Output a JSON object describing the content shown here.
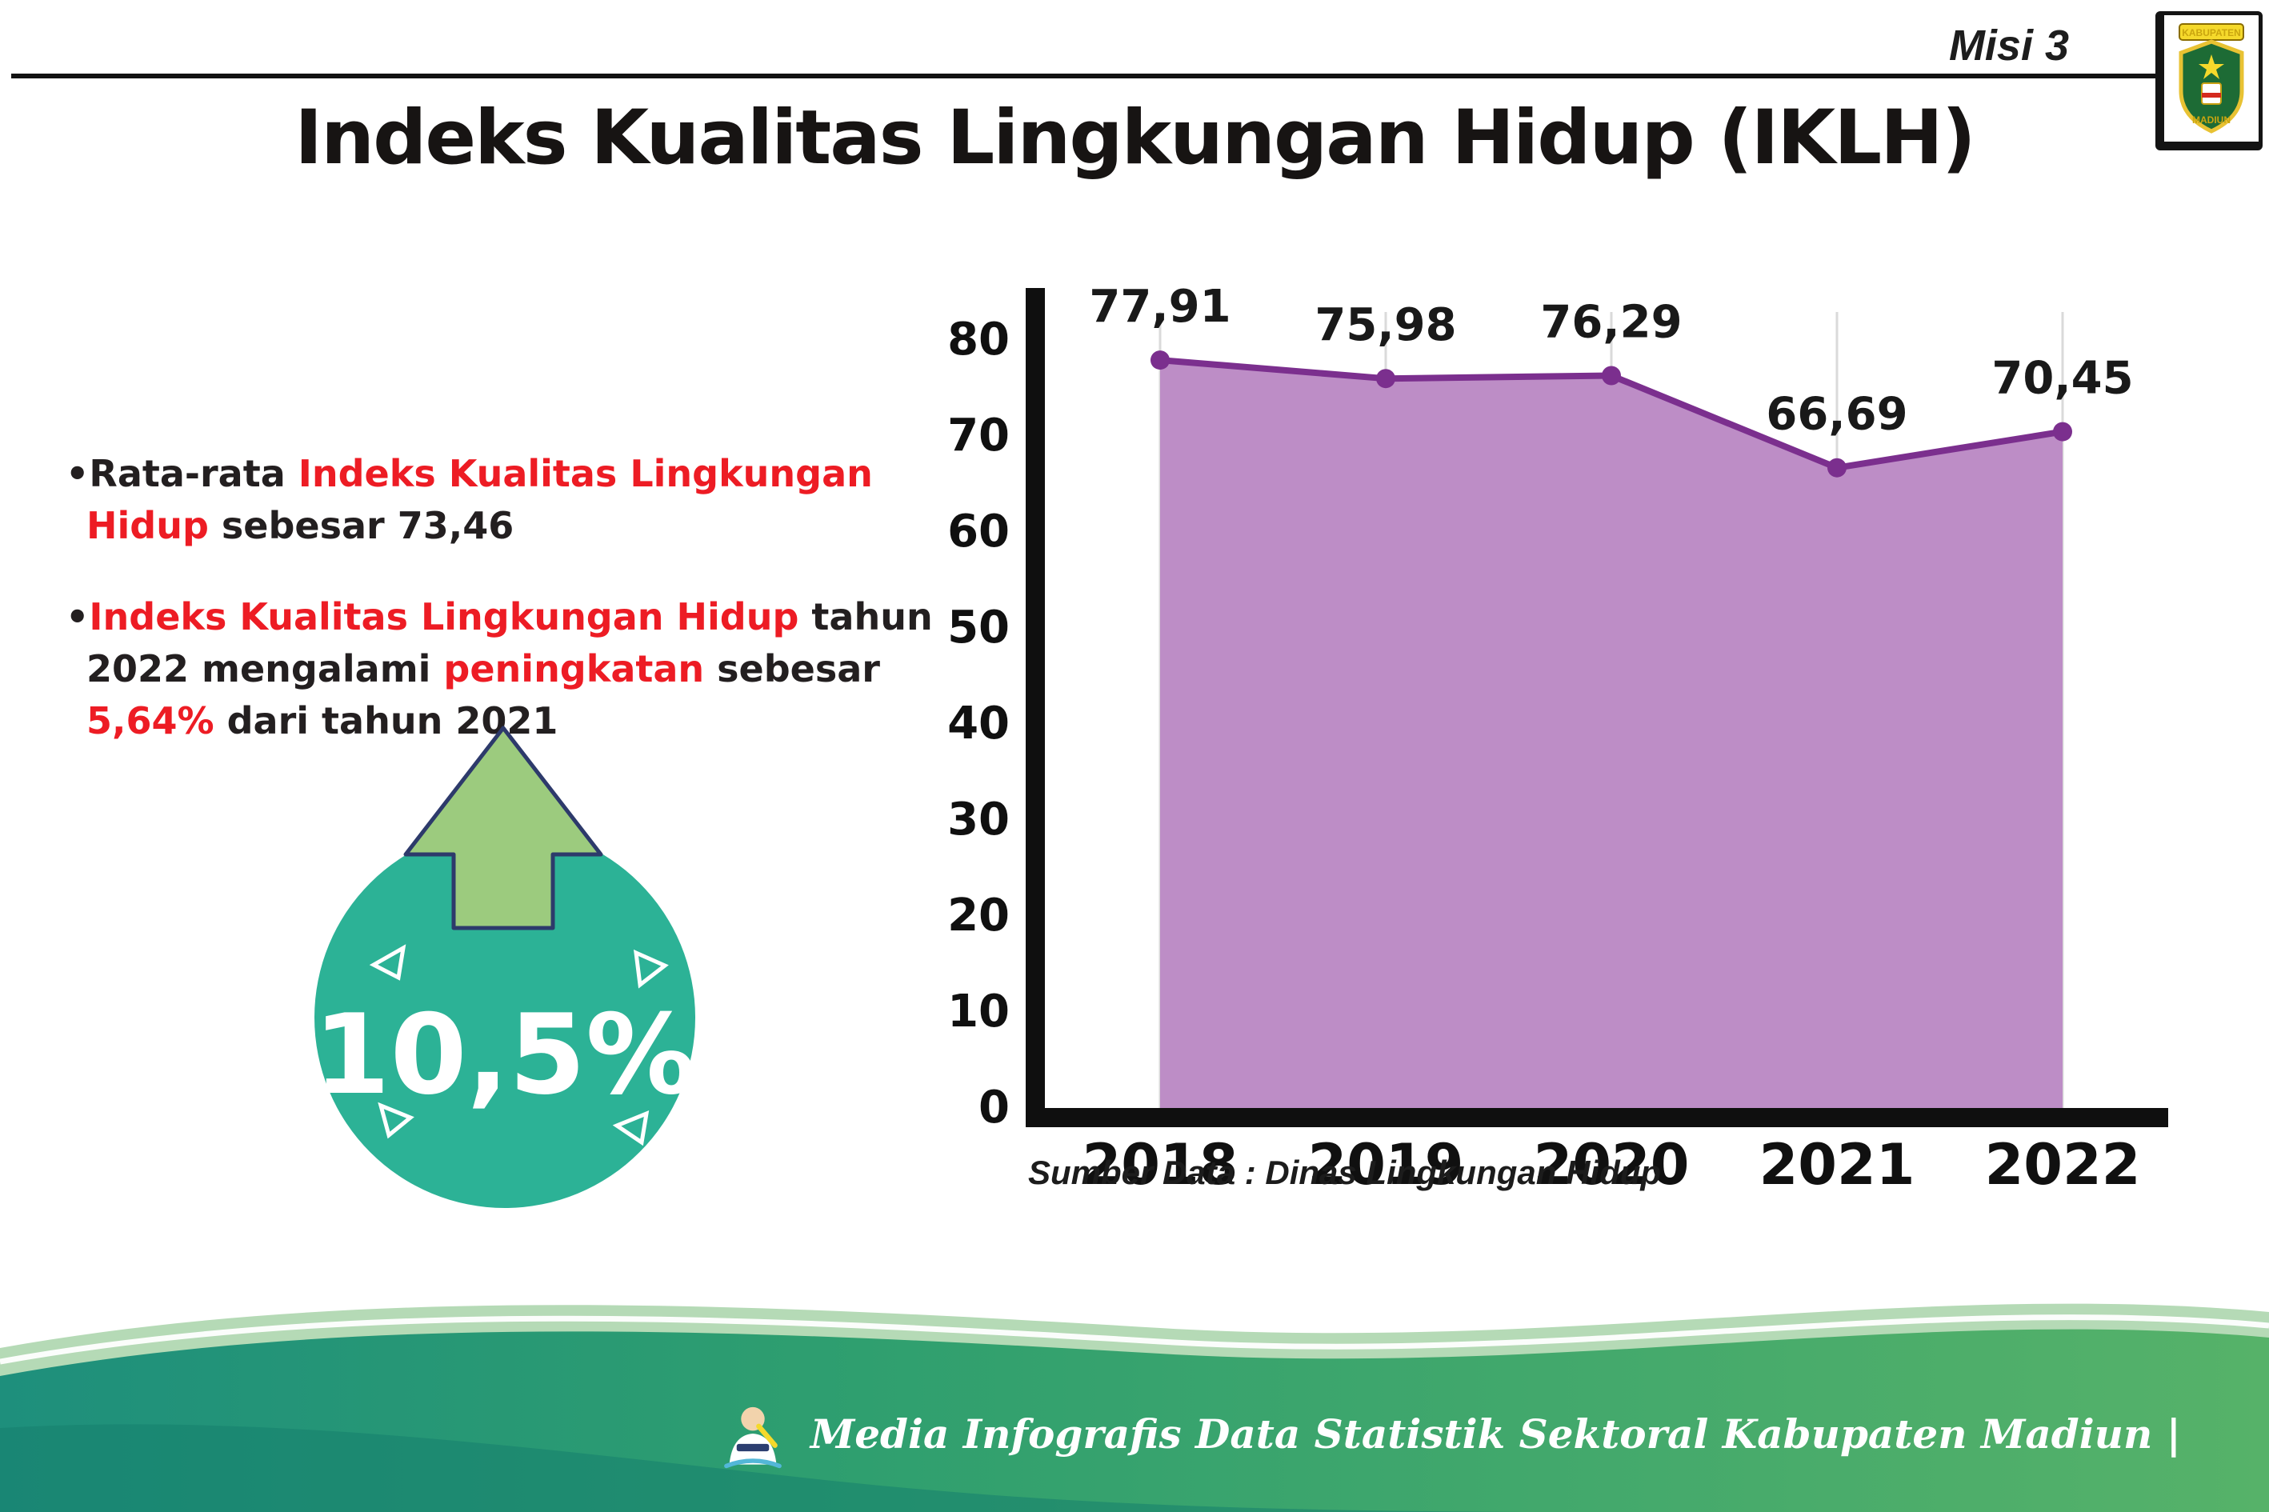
{
  "header": {
    "misi": "Misi 3",
    "title": "Indeks Kualitas Lingkungan Hidup (IKLH)"
  },
  "logo": {
    "kabupaten": "KABUPATEN",
    "madiun": "MADIUN"
  },
  "bullets": {
    "marker": "•",
    "b1": [
      {
        "t": "Rata-rata ",
        "c": "dark"
      },
      {
        "t": "Indeks Kualitas Lingkungan Hidup",
        "c": "red"
      },
      {
        "t": " sebesar 73,46",
        "c": "dark"
      }
    ],
    "b2": [
      {
        "t": "Indeks Kualitas Lingkungan Hidup",
        "c": "red"
      },
      {
        "t": " tahun 2022 mengalami ",
        "c": "dark"
      },
      {
        "t": "peningkatan",
        "c": "red"
      },
      {
        "t": " sebesar ",
        "c": "dark"
      },
      {
        "t": "5,64%",
        "c": "red"
      },
      {
        "t": " dari tahun 2021",
        "c": "dark"
      }
    ]
  },
  "badge": {
    "value": "10,5%",
    "circle_color": "#2cb296",
    "arrow_color": "#9ccb7e"
  },
  "chart_data": {
    "type": "area",
    "title": "Indeks Kualitas Lingkungan Hidup (IKLH)",
    "xlabel": "",
    "ylabel": "",
    "categories": [
      "2018",
      "2019",
      "2020",
      "2021",
      "2022"
    ],
    "values": [
      77.91,
      75.98,
      76.29,
      66.69,
      70.45
    ],
    "labels": [
      "77,91",
      "75,98",
      "76,29",
      "66,69",
      "70,45"
    ],
    "ylim": [
      0,
      80
    ],
    "ytick_step": 10,
    "grid": "vertical",
    "legend": false,
    "source": "Sumber Data : Dinas Lingkungan Hidup",
    "colors": {
      "area": "#bd8dc6",
      "line": "#7b2f8e",
      "marker": "#7b2f8e"
    }
  },
  "footer": {
    "text": "Media Infografis Data Statistik Sektoral Kabupaten Madiun |"
  }
}
